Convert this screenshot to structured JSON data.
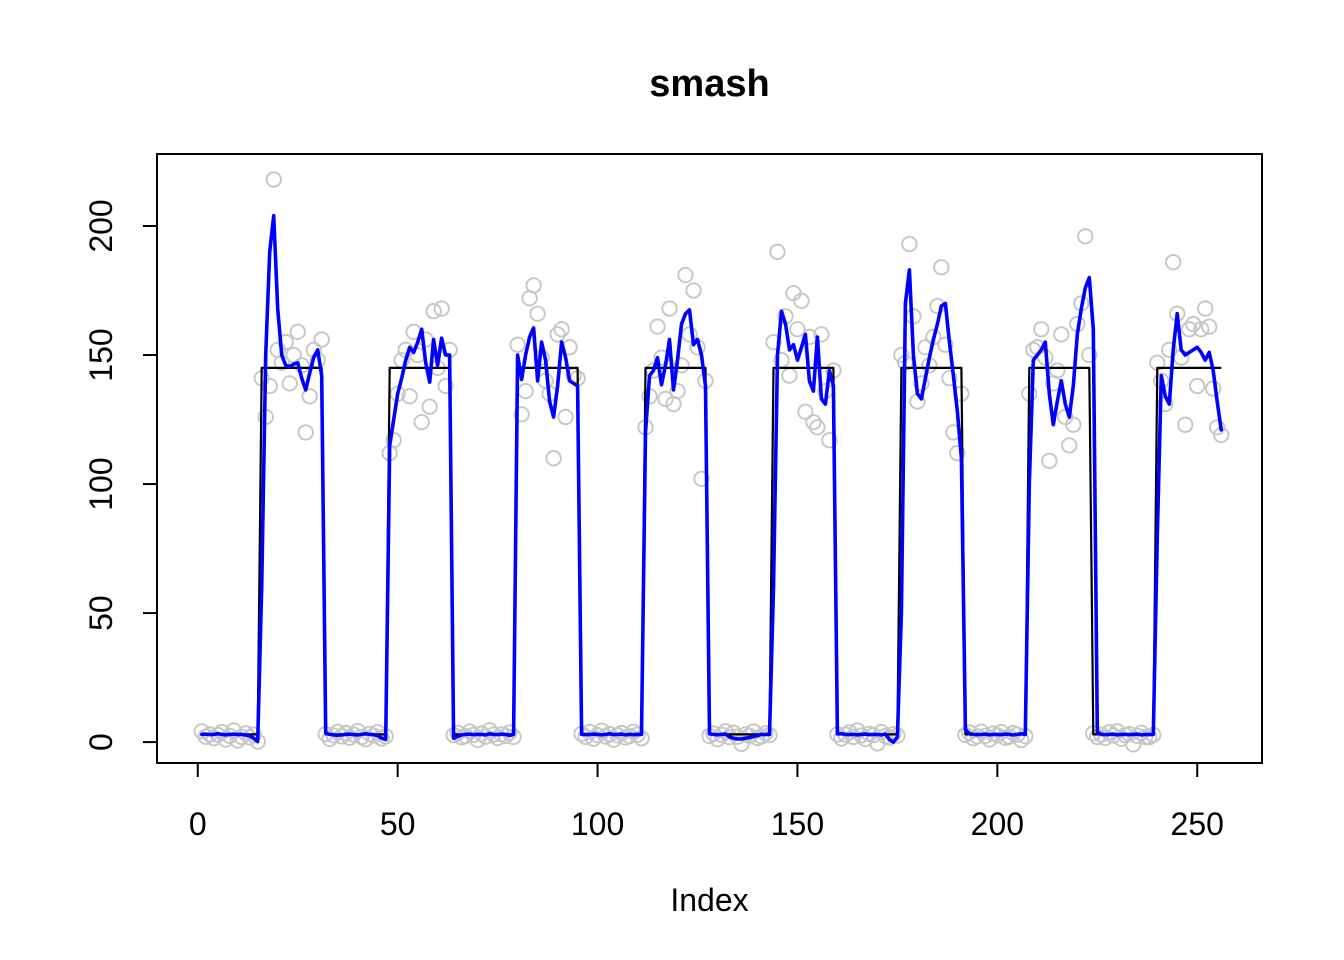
{
  "title": "smash",
  "xlabel": "Index",
  "colors": {
    "background": "#ffffff",
    "axis": "#000000",
    "observations": "#c6c6c6",
    "true_mean": "#000000",
    "smash_estimate": "#0000ff"
  },
  "chart_data": {
    "type": "line",
    "title": "smash",
    "xlabel": "Index",
    "ylabel": "",
    "grid": false,
    "legend": "none",
    "xlim": [
      -10.2,
      266.2
    ],
    "ylim": [
      -8.1,
      227.9
    ],
    "x_ticks": [
      0,
      50,
      100,
      150,
      200,
      250
    ],
    "y_ticks": [
      0,
      50,
      100,
      150,
      200
    ],
    "series": [
      {
        "name": "observations",
        "type": "scatter",
        "marker": "open-circle",
        "color": "#c6c6c6",
        "x_start": 1,
        "x_step": 1,
        "y": [
          4.2,
          2.1,
          3.0,
          1.5,
          2.8,
          3.9,
          1.0,
          2.4,
          4.5,
          0.6,
          2.0,
          3.4,
          1.8,
          2.9,
          0.2,
          141,
          126,
          138,
          218,
          152,
          147,
          155,
          139,
          150,
          159,
          146,
          120,
          134,
          152,
          148,
          156,
          3.1,
          1.2,
          2.6,
          4.0,
          2.2,
          3.5,
          1.7,
          2.9,
          4.3,
          2.0,
          1.1,
          3.2,
          2.5,
          3.8,
          1.4,
          2.2,
          112,
          117,
          135,
          148,
          152,
          134,
          159,
          150,
          124,
          156,
          130,
          167,
          145,
          168,
          138,
          152,
          2.7,
          3.6,
          1.9,
          2.3,
          4.1,
          2.8,
          0.8,
          3.3,
          2.1,
          4.6,
          2.9,
          1.6,
          3.0,
          2.4,
          3.7,
          2.0,
          154,
          127,
          136,
          172,
          177,
          166,
          149,
          140,
          135,
          110,
          158,
          160,
          126,
          153,
          142,
          141,
          3.2,
          2.0,
          3.9,
          1.3,
          2.7,
          4.4,
          2.2,
          3.1,
          0.9,
          2.6,
          3.5,
          1.8,
          2.3,
          4.0,
          2.9,
          1.5,
          122,
          134,
          144,
          161,
          149,
          133,
          168,
          131,
          136,
          146,
          181,
          158,
          175,
          153,
          102,
          140,
          2.4,
          3.3,
          1.1,
          2.8,
          4.2,
          1.9,
          3.6,
          2.1,
          -0.7,
          3.0,
          2.5,
          4.1,
          1.6,
          2.2,
          3.4,
          2.7,
          155,
          190,
          148,
          165,
          142,
          174,
          160,
          171,
          128,
          157,
          124,
          122,
          158,
          136,
          117,
          144,
          3.0,
          1.4,
          2.9,
          3.8,
          2.0,
          4.5,
          2.6,
          1.2,
          3.2,
          2.7,
          -0.5,
          3.9,
          2.3,
          1.8,
          3.1,
          2.5,
          150,
          147,
          193,
          165,
          132,
          139,
          153,
          146,
          157,
          169,
          184,
          154,
          141,
          120,
          112,
          135,
          2.8,
          3.7,
          1.5,
          2.2,
          4.0,
          2.4,
          1.0,
          3.3,
          2.6,
          3.9,
          1.7,
          2.1,
          3.5,
          2.9,
          0.8,
          2.3,
          135,
          152,
          153,
          160,
          149,
          109,
          139,
          144,
          158,
          126,
          115,
          123,
          162,
          170,
          196,
          150,
          3.4,
          2.0,
          2.9,
          1.6,
          3.8,
          2.5,
          4.2,
          1.3,
          2.7,
          3.1,
          -0.9,
          2.4,
          3.6,
          2.0,
          1.9,
          2.8,
          147,
          140,
          131,
          152,
          186,
          166,
          149,
          123,
          160,
          162,
          138,
          160,
          168,
          161,
          137,
          122,
          119
        ]
      },
      {
        "name": "true_mean",
        "type": "step",
        "color": "#000000",
        "x_start": 1,
        "x_end": 256,
        "low": 3,
        "high": 145,
        "high_segments": [
          [
            16,
            31
          ],
          [
            48,
            63
          ],
          [
            80,
            95
          ],
          [
            112,
            127
          ],
          [
            144,
            159
          ],
          [
            176,
            191
          ],
          [
            208,
            223
          ],
          [
            240,
            256
          ]
        ]
      },
      {
        "name": "smash_estimate",
        "type": "line",
        "color": "#0000ff",
        "x_start": 1,
        "x_step": 1,
        "y": [
          3.0,
          3.1,
          2.9,
          3.0,
          3.2,
          3.0,
          2.8,
          3.0,
          3.1,
          2.9,
          3.0,
          2.7,
          2.4,
          1.5,
          0.2,
          60,
          150,
          190,
          204,
          168,
          150,
          146,
          145.5,
          146.5,
          147,
          141,
          136.5,
          143,
          149,
          152,
          142,
          3.5,
          3.0,
          2.8,
          2.6,
          2.8,
          3.0,
          3.1,
          2.9,
          2.8,
          3.0,
          3.2,
          3.0,
          2.9,
          2.5,
          1.5,
          1.0,
          115,
          125,
          135,
          141,
          148,
          153,
          151,
          155,
          160,
          147,
          139.5,
          156,
          146,
          156.5,
          150,
          150,
          1.5,
          2.2,
          2.8,
          3.0,
          3.1,
          2.9,
          3.0,
          3.0,
          2.8,
          3.2,
          3.0,
          2.9,
          3.1,
          3.0,
          2.6,
          3.0,
          150,
          140.5,
          150,
          157,
          160.5,
          140,
          155,
          148,
          132,
          126,
          138,
          155,
          149,
          140,
          139,
          138,
          3.0,
          3.0,
          2.9,
          3.1,
          3.0,
          2.8,
          3.0,
          3.2,
          2.9,
          3.0,
          3.1,
          2.8,
          3.0,
          2.9,
          3.0,
          3.0,
          120,
          142,
          144,
          149,
          138.5,
          146,
          156,
          136.5,
          148,
          162,
          166,
          167.5,
          154,
          156,
          150,
          138,
          3.2,
          3.0,
          2.8,
          3.0,
          3.1,
          2.0,
          1.5,
          1.2,
          1.2,
          1.5,
          1.8,
          2.2,
          2.5,
          3.0,
          3.0,
          3.0,
          60,
          150,
          167,
          162,
          152,
          154,
          148,
          153,
          158,
          140,
          136,
          157,
          133,
          131,
          144,
          138,
          3.2,
          3.2,
          3.0,
          2.9,
          3.0,
          2.8,
          3.0,
          3.1,
          2.9,
          3.0,
          3.0,
          2.8,
          3.1,
          1.0,
          0.0,
          2.0,
          50,
          170,
          183,
          150,
          135,
          133,
          141,
          149,
          156,
          162,
          169,
          170,
          155,
          142,
          128,
          110,
          5.0,
          3.2,
          3.0,
          2.9,
          3.0,
          3.1,
          2.8,
          3.0,
          3.0,
          2.9,
          3.1,
          3.0,
          2.8,
          3.0,
          3.2,
          3.0,
          100,
          148,
          150,
          152,
          155,
          135,
          123,
          132,
          140,
          131,
          126,
          138,
          158,
          168,
          176,
          180,
          160,
          4.0,
          3.0,
          2.9,
          3.0,
          3.1,
          2.8,
          3.0,
          3.0,
          2.9,
          3.0,
          3.1,
          2.8,
          3.0,
          2.9,
          3.0,
          80,
          142,
          134,
          131,
          152,
          166,
          152,
          150,
          151,
          152,
          153,
          151,
          148,
          151,
          144,
          132,
          121
        ]
      }
    ]
  }
}
